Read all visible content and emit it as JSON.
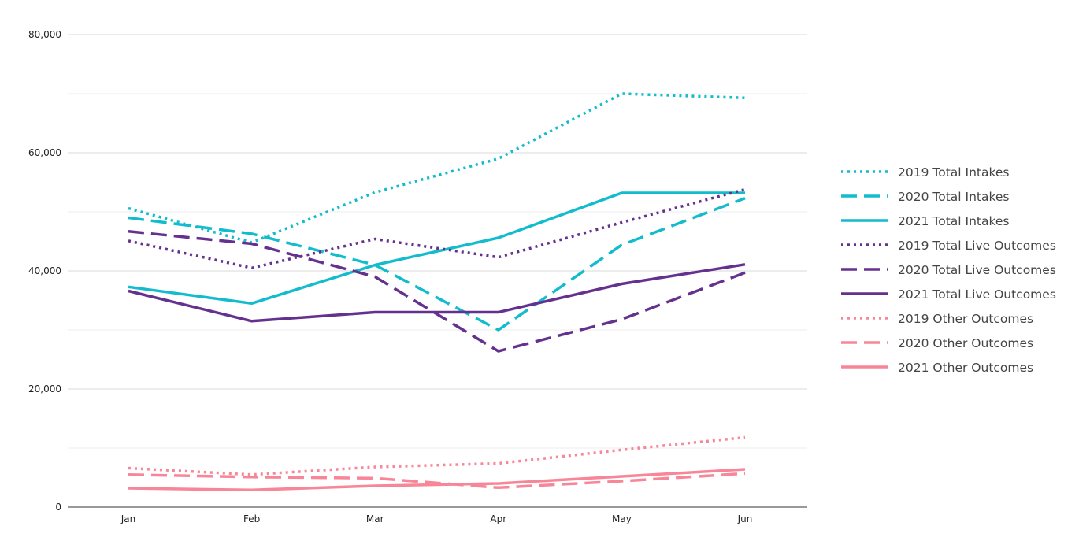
{
  "chart_data": {
    "type": "line",
    "title": "",
    "xlabel": "",
    "ylabel": "",
    "categories": [
      "Jan",
      "Feb",
      "Mar",
      "Apr",
      "May",
      "Jun"
    ],
    "ylim": [
      0,
      80000
    ],
    "y_ticks": [
      0,
      20000,
      40000,
      60000,
      80000
    ],
    "y_tick_labels": [
      "0",
      "20,000",
      "40,000",
      "60,000",
      "80,000"
    ],
    "grid": true,
    "legend_position": "right",
    "series": [
      {
        "name": "2019 Total Intakes",
        "color": "#12bccd",
        "dash": "dotted",
        "values": [
          50600,
          44800,
          53300,
          59000,
          70000,
          69300
        ]
      },
      {
        "name": "2020 Total Intakes",
        "color": "#12bccd",
        "dash": "dashed",
        "values": [
          49000,
          46300,
          41000,
          30000,
          44400,
          52300
        ]
      },
      {
        "name": "2021 Total Intakes",
        "color": "#12bccd",
        "dash": "solid",
        "values": [
          37300,
          34500,
          41000,
          45600,
          53200,
          53200
        ]
      },
      {
        "name": "2019 Total Live Outcomes",
        "color": "#65318f",
        "dash": "dotted",
        "values": [
          45100,
          40500,
          45400,
          42300,
          48200,
          53800
        ]
      },
      {
        "name": "2020 Total Live Outcomes",
        "color": "#65318f",
        "dash": "dashed",
        "values": [
          46700,
          44600,
          39000,
          26400,
          31800,
          39700
        ]
      },
      {
        "name": "2021 Total Live Outcomes",
        "color": "#65318f",
        "dash": "solid",
        "values": [
          36600,
          31500,
          33000,
          33000,
          37800,
          41100
        ]
      },
      {
        "name": "2019 Other Outcomes",
        "color": "#f88699",
        "dash": "dotted",
        "values": [
          6600,
          5500,
          6800,
          7400,
          9700,
          11800
        ]
      },
      {
        "name": "2020 Other Outcomes",
        "color": "#f88699",
        "dash": "dashed",
        "values": [
          5500,
          5100,
          4900,
          3300,
          4400,
          5700
        ]
      },
      {
        "name": "2021 Other Outcomes",
        "color": "#f88699",
        "dash": "solid",
        "values": [
          3200,
          2900,
          3600,
          4000,
          5200,
          6400
        ]
      }
    ]
  }
}
